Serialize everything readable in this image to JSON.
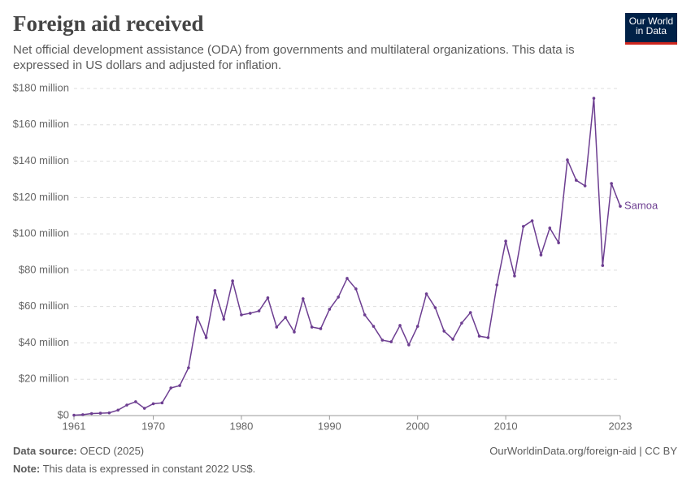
{
  "logo": "Our World in Data",
  "chart_data": {
    "type": "line",
    "title": "Foreign aid received",
    "subtitle": "Net official development assistance (ODA) from governments and multilateral organizations. This data is expressed in US dollars and adjusted for inflation.",
    "source_label": "Data source:",
    "source": "OECD (2025)",
    "url": "OurWorldinData.org/foreign-aid | CC BY",
    "note_label": "Note:",
    "note": "This data is expressed in constant 2022 US$.",
    "x": [
      1961,
      1962,
      1963,
      1964,
      1965,
      1966,
      1967,
      1968,
      1969,
      1970,
      1971,
      1972,
      1973,
      1974,
      1975,
      1976,
      1977,
      1978,
      1979,
      1980,
      1981,
      1982,
      1983,
      1984,
      1985,
      1986,
      1987,
      1988,
      1989,
      1990,
      1991,
      1992,
      1993,
      1994,
      1995,
      1996,
      1997,
      1998,
      1999,
      2000,
      2001,
      2002,
      2003,
      2004,
      2005,
      2006,
      2007,
      2008,
      2009,
      2010,
      2011,
      2012,
      2013,
      2014,
      2015,
      2016,
      2017,
      2018,
      2019,
      2020,
      2021,
      2022,
      2023
    ],
    "series": [
      {
        "name": "Samoa",
        "color": "#6d3e91",
        "values": [
          0.2,
          0.5,
          1.1,
          1.3,
          1.5,
          3,
          5.8,
          7.6,
          4,
          6.5,
          7,
          15.2,
          16.5,
          26.3,
          54,
          42.9,
          68.8,
          53.1,
          74.1,
          55.4,
          56.3,
          57.6,
          64.8,
          48.7,
          54,
          46,
          64.3,
          48.7,
          47.8,
          58.5,
          65.2,
          75.5,
          69.7,
          55.4,
          49.1,
          41.5,
          40.6,
          49.6,
          38.9,
          49.1,
          67,
          59.4,
          46.5,
          42,
          50.9,
          56.7,
          43.7,
          42.9,
          71.9,
          96,
          76.8,
          104.1,
          107.2,
          88.4,
          103.2,
          95.1,
          140.7,
          129.5,
          126.4,
          174.6,
          82.6,
          127.7,
          115.2
        ]
      }
    ],
    "xlim": [
      1961,
      2023
    ],
    "xticks": [
      1961,
      1970,
      1980,
      1990,
      2000,
      2010,
      2023
    ],
    "ylim": [
      0,
      180
    ],
    "yticks": [
      {
        "value": 0,
        "label": "$0"
      },
      {
        "value": 20,
        "label": "$20 million"
      },
      {
        "value": 40,
        "label": "$40 million"
      },
      {
        "value": 60,
        "label": "$60 million"
      },
      {
        "value": 80,
        "label": "$80 million"
      },
      {
        "value": 100,
        "label": "$100 million"
      },
      {
        "value": 120,
        "label": "$120 million"
      },
      {
        "value": 140,
        "label": "$140 million"
      },
      {
        "value": 160,
        "label": "$160 million"
      },
      {
        "value": 180,
        "label": "$180 million"
      }
    ],
    "grid": true
  }
}
